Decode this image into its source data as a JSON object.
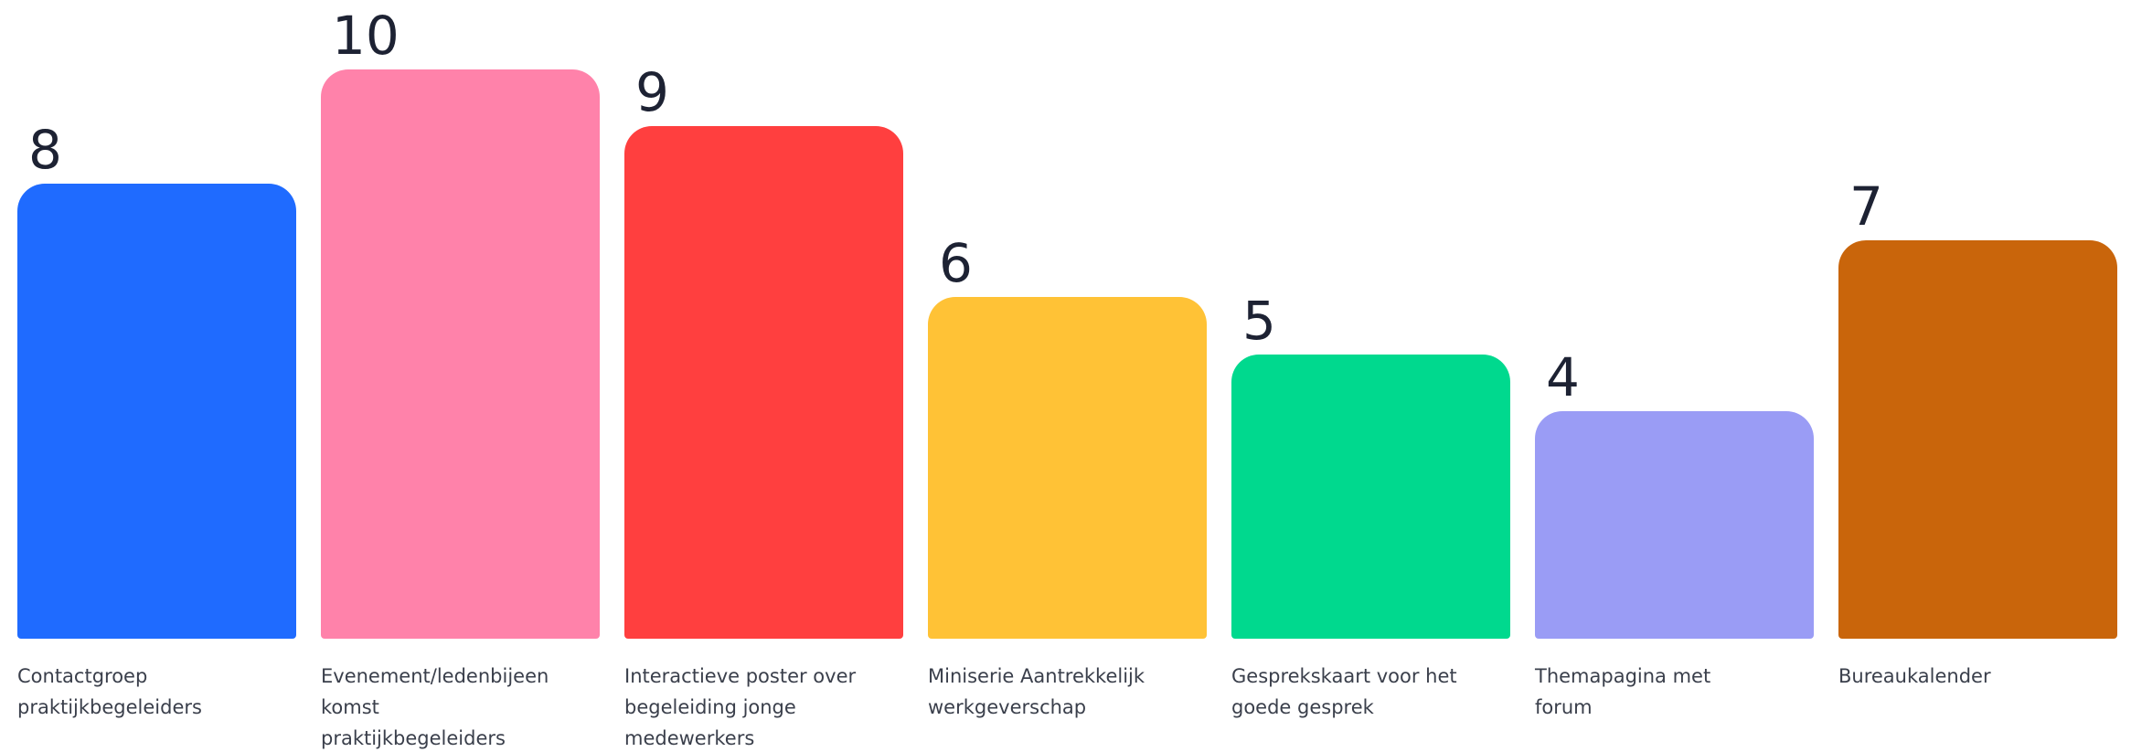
{
  "chart_data": {
    "type": "bar",
    "categories": [
      "Contactgroep praktijkbegeleiders",
      "Evenement/ledenbijeenkomst praktijkbegeleiders",
      "Interactieve poster over begeleiding jonge medewerkers",
      "Miniserie Aantrekkelijk werkgeverschap",
      "Gesprekskaart voor het goede gesprek",
      "Themapagina met forum",
      "Bureaukalender"
    ],
    "values": [
      8,
      10,
      9,
      6,
      5,
      4,
      7
    ],
    "colors": [
      "#1f6bff",
      "#ff82aa",
      "#ff3f3f",
      "#ffc236",
      "#00d98e",
      "#9a9cf5",
      "#c9650b"
    ]
  }
}
